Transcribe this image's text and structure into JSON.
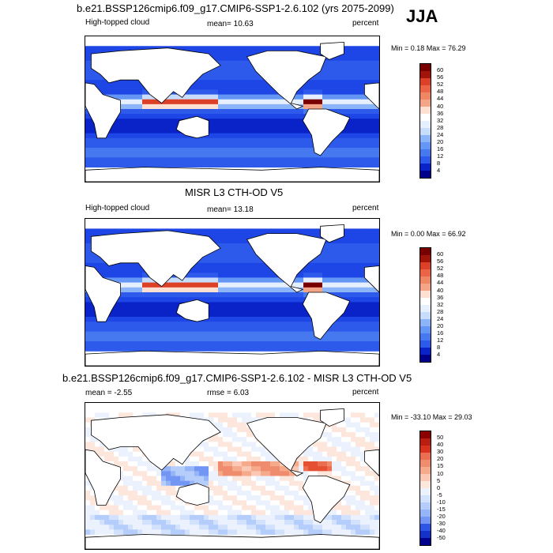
{
  "season": "JJA",
  "colors": {
    "abs_scale": [
      "#00008b",
      "#0a23c8",
      "#1e46e6",
      "#2d5aeb",
      "#4678f0",
      "#6496f5",
      "#8cb4f8",
      "#aac8fa",
      "#c8dcfc",
      "#e6effd",
      "#ffffff",
      "#fde0d2",
      "#fac3aa",
      "#f5a587",
      "#f08764",
      "#eb6446",
      "#dc4128",
      "#c32814",
      "#a0140a",
      "#780000"
    ],
    "diff_scale": [
      "#00008b",
      "#1432c8",
      "#2d55e6",
      "#5078f0",
      "#7396f5",
      "#96b4f8",
      "#b4cdfa",
      "#d2e1fc",
      "#ebf2fe",
      "#ffffff",
      "#fde6dc",
      "#fac8b4",
      "#f5aa8c",
      "#f08c6e",
      "#eb6e50",
      "#e65032",
      "#d7321e",
      "#b91e10",
      "#8b0000"
    ]
  },
  "panels": [
    {
      "title": "b.e21.BSSP126cmip6.f09_g17.CMIP6-SSP1-2.6.102 (yrs 2075-2099)",
      "left_label": "High-topped cloud",
      "mean_label": "mean=  10.63",
      "units": "percent",
      "minmax": "Min =   0.18 Max =  76.29",
      "colorbar_labels": [
        "60",
        "56",
        "52",
        "48",
        "44",
        "40",
        "36",
        "32",
        "28",
        "24",
        "20",
        "16",
        "12",
        "8",
        "4"
      ]
    },
    {
      "title": "MISR L3 CTH-OD V5",
      "left_label": "High-topped cloud",
      "mean_label": "mean=  13.18",
      "units": "percent",
      "minmax": "Min =   0.00 Max =  66.92",
      "colorbar_labels": [
        "60",
        "56",
        "52",
        "48",
        "44",
        "40",
        "36",
        "32",
        "28",
        "24",
        "20",
        "16",
        "12",
        "8",
        "4"
      ]
    },
    {
      "title": "b.e21.BSSP126cmip6.f09_g17.CMIP6-SSP1-2.6.102 - MISR L3 CTH-OD V5",
      "left_label": "mean =  -2.55",
      "mean_label": "rmse =   6.03",
      "units": "percent",
      "minmax": "Min = -33.10 Max =  29.03",
      "colorbar_labels": [
        "50",
        "40",
        "30",
        "20",
        "15",
        "10",
        "5",
        "0",
        "-5",
        "-10",
        "-15",
        "-20",
        "-30",
        "-40",
        "-50"
      ]
    }
  ],
  "chart_data": [
    {
      "type": "heatmap",
      "title": "b.e21.BSSP126cmip6.f09_g17.CMIP6-SSP1-2.6.102 (yrs 2075-2099)",
      "variable": "High-topped cloud",
      "units": "percent",
      "mean": 10.63,
      "min": 0.18,
      "max": 76.29,
      "colorbar_ticks": [
        4,
        8,
        12,
        16,
        20,
        24,
        28,
        32,
        36,
        40,
        44,
        48,
        52,
        56,
        60
      ]
    },
    {
      "type": "heatmap",
      "title": "MISR L3 CTH-OD V5",
      "variable": "High-topped cloud",
      "units": "percent",
      "mean": 13.18,
      "min": 0.0,
      "max": 66.92,
      "colorbar_ticks": [
        4,
        8,
        12,
        16,
        20,
        24,
        28,
        32,
        36,
        40,
        44,
        48,
        52,
        56,
        60
      ]
    },
    {
      "type": "heatmap",
      "title": "b.e21.BSSP126cmip6.f09_g17.CMIP6-SSP1-2.6.102 - MISR L3 CTH-OD V5",
      "units": "percent",
      "mean": -2.55,
      "rmse": 6.03,
      "min": -33.1,
      "max": 29.03,
      "colorbar_ticks": [
        -50,
        -40,
        -30,
        -20,
        -15,
        -10,
        -5,
        0,
        5,
        10,
        15,
        20,
        30,
        40,
        50
      ]
    }
  ]
}
